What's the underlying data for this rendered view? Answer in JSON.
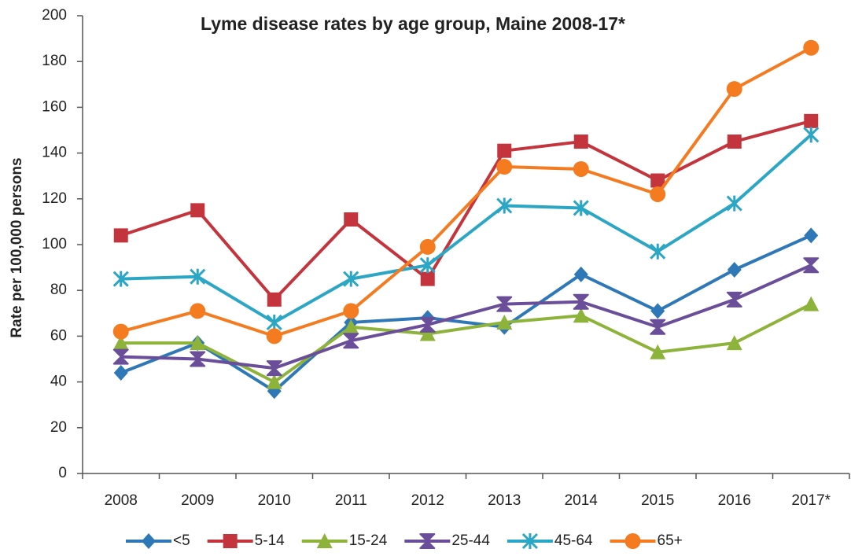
{
  "chart_data": {
    "type": "line",
    "title": "Lyme disease rates by age group, Maine 2008-17*",
    "y_label": "Rate per 100,000 persons",
    "categories": [
      "2008",
      "2009",
      "2010",
      "2011",
      "2012",
      "2013",
      "2014",
      "2015",
      "2016",
      "2017*"
    ],
    "series": [
      {
        "name": "<5",
        "color": "#2f78b8",
        "marker": "diamond",
        "values": [
          44,
          57,
          36,
          66,
          68,
          64,
          87,
          71,
          89,
          104
        ]
      },
      {
        "name": "5-14",
        "color": "#c3343c",
        "marker": "square",
        "values": [
          104,
          115,
          76,
          111,
          85,
          141,
          145,
          128,
          145,
          154
        ]
      },
      {
        "name": "15-24",
        "color": "#8db33a",
        "marker": "triangle",
        "values": [
          57,
          57,
          40,
          64,
          61,
          66,
          69,
          53,
          57,
          74
        ]
      },
      {
        "name": "25-44",
        "color": "#6a4e9a",
        "marker": "bowtie",
        "values": [
          51,
          50,
          46,
          58,
          65,
          74,
          75,
          64,
          76,
          91
        ]
      },
      {
        "name": "45-64",
        "color": "#2ba6c4",
        "marker": "asterisk",
        "values": [
          85,
          86,
          66,
          85,
          91,
          117,
          116,
          97,
          118,
          148
        ]
      },
      {
        "name": "65+",
        "color": "#f47b20",
        "marker": "circle",
        "values": [
          62,
          71,
          60,
          71,
          99,
          134,
          133,
          122,
          168,
          186
        ]
      }
    ],
    "ylim": [
      0,
      200
    ],
    "yticks": [
      0,
      20,
      40,
      60,
      80,
      100,
      120,
      140,
      160,
      180,
      200
    ],
    "grid": false,
    "legend": "bottom"
  }
}
